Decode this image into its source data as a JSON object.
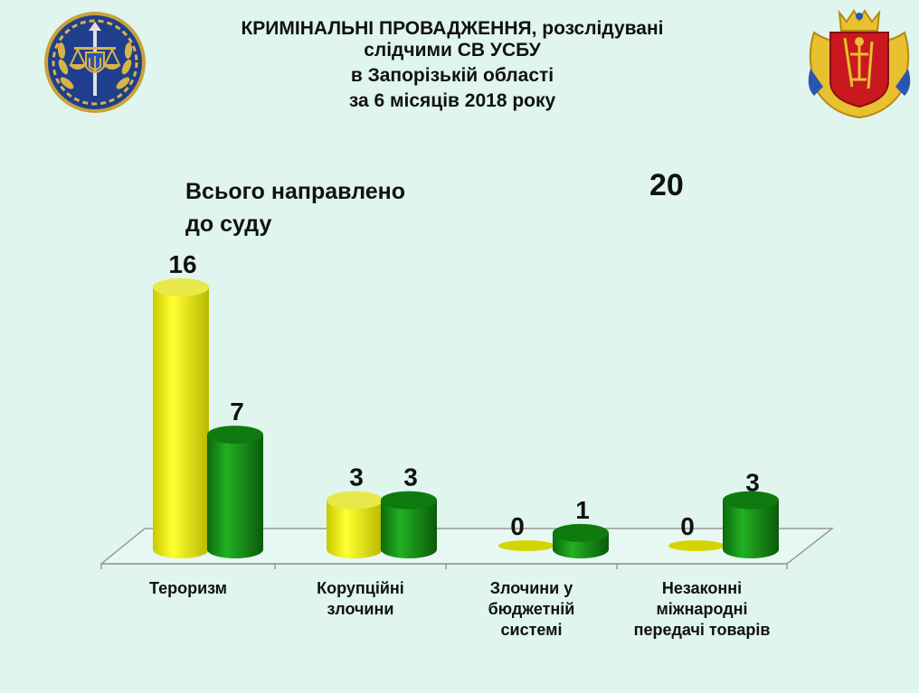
{
  "title": {
    "line1": "КРИМІНАЛЬНІ ПРОВАДЖЕННЯ, розслідувані",
    "line2": "слідчими СВ УСБУ",
    "line3": "в Запорізькій області",
    "line4": "за 6 місяців 2018 року"
  },
  "summary": {
    "label_line1": "Всього направлено",
    "label_line2": "до суду",
    "value": "20"
  },
  "colors": {
    "background": "#dff5ee",
    "yellow": "#f2f200",
    "green": "#1a9a1a"
  },
  "chart_data": {
    "type": "bar",
    "categories": [
      [
        "Тероризм"
      ],
      [
        "Корупційні",
        "злочини"
      ],
      [
        "Злочини у",
        "бюджетній",
        "системі"
      ],
      [
        "Незаконні",
        "міжнародні",
        "передачі товарів"
      ]
    ],
    "series": [
      {
        "color": "#f2f200",
        "values": [
          16,
          3,
          0,
          0
        ]
      },
      {
        "color": "#1a9a1a",
        "values": [
          7,
          3,
          1,
          3
        ]
      }
    ],
    "title": "",
    "xlabel": "",
    "ylabel": "",
    "ylim": [
      0,
      16
    ],
    "grid": false,
    "legend": "none",
    "style": "3d-cylinder"
  }
}
